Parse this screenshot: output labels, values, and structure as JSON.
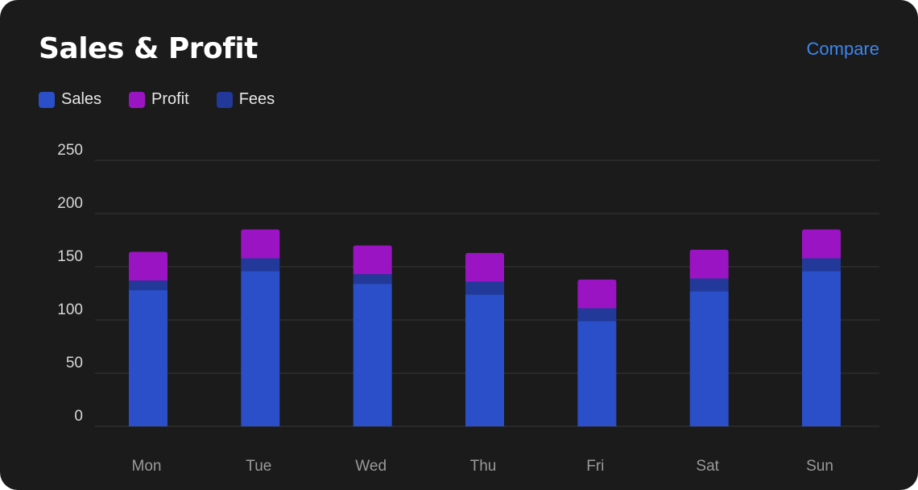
{
  "header": {
    "title": "Sales & Profit",
    "compare_label": "Compare"
  },
  "legend": [
    {
      "label": "Sales",
      "color": "#2a4fc8"
    },
    {
      "label": "Profit",
      "color": "#9b14c3"
    },
    {
      "label": "Fees",
      "color": "#22399a"
    }
  ],
  "chart_data": {
    "type": "bar",
    "stacked": true,
    "title": "Sales & Profit",
    "categories": [
      "Mon",
      "Tue",
      "Wed",
      "Thu",
      "Fri",
      "Sat",
      "Sun"
    ],
    "series": [
      {
        "name": "Sales",
        "color": "#2a4fc8",
        "values": [
          128,
          146,
          134,
          124,
          99,
          127,
          146
        ]
      },
      {
        "name": "Fees",
        "color": "#22399a",
        "values": [
          9,
          12,
          9,
          12,
          12,
          12,
          12
        ]
      },
      {
        "name": "Profit",
        "color": "#9b14c3",
        "values": [
          27,
          27,
          27,
          27,
          27,
          27,
          27
        ]
      }
    ],
    "yticks": [
      0,
      50,
      100,
      150,
      200,
      250
    ],
    "ylim": [
      0,
      250
    ],
    "grid": true,
    "legend_position": "top-left"
  }
}
